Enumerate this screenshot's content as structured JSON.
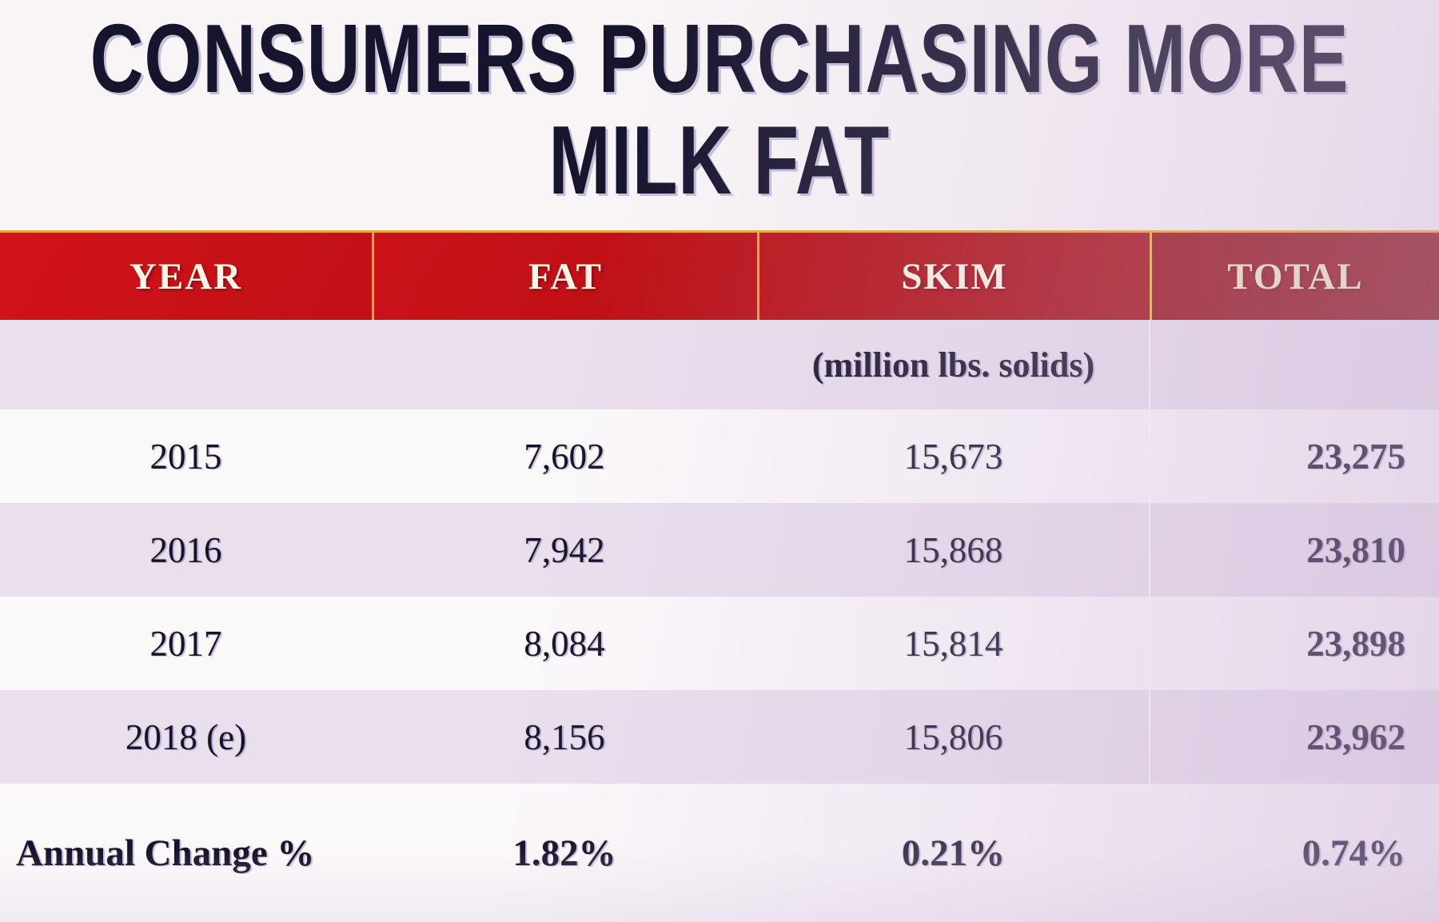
{
  "slide": {
    "title_line1": "CONSUMERS PURCHASING MORE",
    "title_line2": "MILK FAT"
  },
  "table": {
    "headers": [
      {
        "label": "YEAR"
      },
      {
        "label": "FAT"
      },
      {
        "label": "SKIM"
      },
      {
        "label": "TOTAL"
      }
    ],
    "unit_note": "(million lbs. solids)",
    "rows": [
      {
        "year": "2015",
        "fat": "7,602",
        "skim": "15,673",
        "total": "23,275"
      },
      {
        "year": "2016",
        "fat": "7,942",
        "skim": "15,868",
        "total": "23,810"
      },
      {
        "year": "2017",
        "fat": "8,084",
        "skim": "15,814",
        "total": "23,898"
      },
      {
        "year": "2018 (e)",
        "fat": "8,156",
        "skim": "15,806",
        "total": "23,962"
      }
    ],
    "summary_row": {
      "label": "Annual Change %",
      "fat": "1.82%",
      "skim": "0.21%",
      "total": "0.74%"
    }
  },
  "chart_data": {
    "type": "table",
    "title": "CONSUMERS PURCHASING MORE MILK FAT",
    "columns": [
      "YEAR",
      "FAT",
      "SKIM",
      "TOTAL"
    ],
    "unit": "million lbs. solids",
    "rows": [
      [
        "2015",
        7602,
        15673,
        23275
      ],
      [
        "2016",
        7942,
        15868,
        23810
      ],
      [
        "2017",
        8084,
        15814,
        23898
      ],
      [
        "2018 (e)",
        8156,
        15806,
        23962
      ]
    ],
    "annual_change_percent": {
      "FAT": 1.82,
      "SKIM": 0.21,
      "TOTAL": 0.74
    }
  },
  "colors": {
    "header_red": "#c41017",
    "header_red_dark": "#8e0d12",
    "divider_yellow": "#f0a63c",
    "row_lavender": "#e9dfed",
    "row_white": "#fbf8fa",
    "text_navy": "#16122a"
  }
}
